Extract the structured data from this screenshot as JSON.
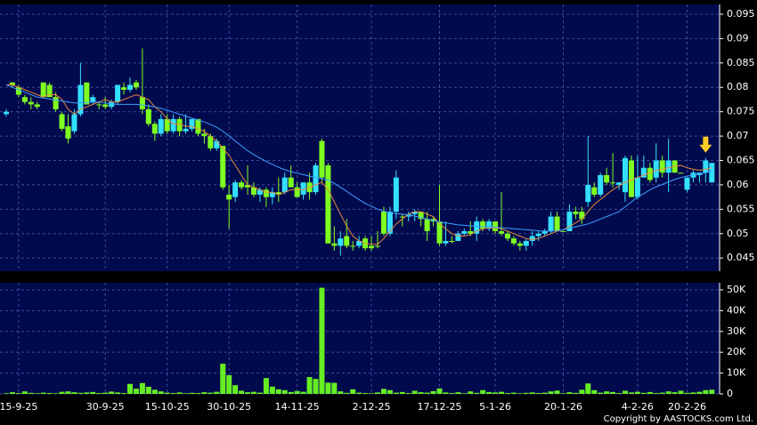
{
  "chart_data": {
    "type": "candlestick",
    "categories": [
      null,
      null,
      "15-9-25",
      null,
      null,
      null,
      null,
      null,
      null,
      null,
      null,
      null,
      null,
      null,
      null,
      null,
      "30-9-25",
      null,
      null,
      null,
      null,
      null,
      null,
      null,
      null,
      null,
      "15-10-25",
      null,
      null,
      null,
      null,
      null,
      null,
      null,
      null,
      null,
      "30-10-25",
      null,
      null,
      null,
      null,
      null,
      null,
      null,
      null,
      null,
      null,
      "14-11-25",
      null,
      null,
      null,
      null,
      null,
      null,
      null,
      null,
      null,
      null,
      null,
      "2-12-25",
      null,
      null,
      null,
      null,
      null,
      null,
      null,
      null,
      null,
      null,
      "17-12-25",
      null,
      null,
      null,
      null,
      null,
      null,
      null,
      null,
      "5-1-26",
      null,
      null,
      null,
      null,
      null,
      null,
      null,
      null,
      null,
      null,
      "20-1-26",
      null,
      null,
      null,
      null,
      null,
      null,
      null,
      null,
      null,
      null,
      null,
      "4-2-26",
      null,
      null,
      null,
      null,
      null,
      null,
      null,
      "20-2-26",
      null,
      null,
      null,
      null
    ],
    "ohlc": [
      [
        0.0745,
        0.0755,
        0.074,
        0.075
      ],
      [
        0.081,
        0.081,
        0.08,
        0.0805
      ],
      [
        0.08,
        0.0805,
        0.078,
        0.0785
      ],
      [
        0.078,
        0.0785,
        0.0765,
        0.077
      ],
      [
        0.077,
        0.078,
        0.0755,
        0.0765
      ],
      [
        0.0765,
        0.077,
        0.0755,
        0.076
      ],
      [
        0.081,
        0.081,
        0.078,
        0.078
      ],
      [
        0.0805,
        0.081,
        0.078,
        0.078
      ],
      [
        0.078,
        0.079,
        0.075,
        0.0755
      ],
      [
        0.0745,
        0.075,
        0.071,
        0.0715
      ],
      [
        0.072,
        0.0745,
        0.0685,
        0.0695
      ],
      [
        0.071,
        0.0755,
        0.0705,
        0.0745
      ],
      [
        0.0745,
        0.085,
        0.074,
        0.0805
      ],
      [
        0.081,
        0.081,
        0.0765,
        0.0765
      ],
      [
        0.077,
        0.0785,
        0.0765,
        0.078
      ],
      [
        0.0765,
        0.077,
        0.0755,
        0.0765
      ],
      [
        0.0765,
        0.078,
        0.0755,
        0.076
      ],
      [
        0.076,
        0.0775,
        0.0755,
        0.077
      ],
      [
        0.077,
        0.0805,
        0.0765,
        0.0805
      ],
      [
        0.08,
        0.081,
        0.0785,
        0.0795
      ],
      [
        0.0795,
        0.082,
        0.079,
        0.0805
      ],
      [
        0.081,
        0.0815,
        0.0795,
        0.08
      ],
      [
        0.078,
        0.088,
        0.0745,
        0.0755
      ],
      [
        0.0755,
        0.0765,
        0.072,
        0.0725
      ],
      [
        0.0725,
        0.073,
        0.069,
        0.0705
      ],
      [
        0.0705,
        0.0745,
        0.07,
        0.0735
      ],
      [
        0.0735,
        0.0745,
        0.0705,
        0.071
      ],
      [
        0.071,
        0.0745,
        0.0705,
        0.0735
      ],
      [
        0.0735,
        0.074,
        0.07,
        0.071
      ],
      [
        0.071,
        0.0745,
        0.0705,
        0.0715
      ],
      [
        0.0715,
        0.0735,
        0.071,
        0.0735
      ],
      [
        0.0735,
        0.0735,
        0.07,
        0.0705
      ],
      [
        0.0705,
        0.0715,
        0.0685,
        0.07
      ],
      [
        0.07,
        0.0705,
        0.067,
        0.0675
      ],
      [
        0.0675,
        0.0695,
        0.067,
        0.069
      ],
      [
        0.068,
        0.068,
        0.059,
        0.0595
      ],
      [
        0.058,
        0.06,
        0.051,
        0.057
      ],
      [
        0.0575,
        0.061,
        0.0565,
        0.0605
      ],
      [
        0.0605,
        0.061,
        0.059,
        0.0595
      ],
      [
        0.06,
        0.064,
        0.058,
        0.0595
      ],
      [
        0.0595,
        0.0605,
        0.0575,
        0.058
      ],
      [
        0.058,
        0.0595,
        0.0565,
        0.059
      ],
      [
        0.059,
        0.0595,
        0.0555,
        0.0575
      ],
      [
        0.0575,
        0.0595,
        0.056,
        0.0585
      ],
      [
        0.0585,
        0.0615,
        0.0565,
        0.058
      ],
      [
        0.0585,
        0.0625,
        0.058,
        0.0615
      ],
      [
        0.0615,
        0.064,
        0.0595,
        0.0595
      ],
      [
        0.0595,
        0.0605,
        0.0575,
        0.0575
      ],
      [
        0.058,
        0.0605,
        0.057,
        0.0605
      ],
      [
        0.0605,
        0.0625,
        0.057,
        0.0585
      ],
      [
        0.0585,
        0.0645,
        0.058,
        0.064
      ],
      [
        0.069,
        0.0695,
        0.0605,
        0.0615
      ],
      [
        0.064,
        0.0645,
        0.048,
        0.048
      ],
      [
        0.048,
        0.0515,
        0.0465,
        0.0475
      ],
      [
        0.0475,
        0.0505,
        0.0455,
        0.049
      ],
      [
        0.0495,
        0.053,
        0.047,
        0.0475
      ],
      [
        0.0475,
        0.0485,
        0.0465,
        0.0475
      ],
      [
        0.0475,
        0.0495,
        0.047,
        0.0485
      ],
      [
        0.049,
        0.0495,
        0.0465,
        0.047
      ],
      [
        0.0475,
        0.0495,
        0.0465,
        0.047
      ],
      [
        0.0475,
        0.0505,
        0.047,
        0.0475
      ],
      [
        0.0545,
        0.0555,
        0.0495,
        0.05
      ],
      [
        0.05,
        0.0555,
        0.0495,
        0.0545
      ],
      [
        0.0545,
        0.063,
        0.053,
        0.0615
      ],
      [
        0.0535,
        0.054,
        0.0515,
        0.0535
      ],
      [
        0.0535,
        0.0545,
        0.0525,
        0.054
      ],
      [
        0.054,
        0.055,
        0.0525,
        0.0545
      ],
      [
        0.0545,
        0.0545,
        0.0515,
        0.053
      ],
      [
        0.053,
        0.0545,
        0.0485,
        0.0505
      ],
      [
        0.053,
        0.0535,
        0.0515,
        0.0525
      ],
      [
        0.0525,
        0.06,
        0.0475,
        0.048
      ],
      [
        0.048,
        0.0525,
        0.0475,
        0.0485
      ],
      [
        0.0485,
        0.0495,
        0.048,
        0.0485
      ],
      [
        0.0485,
        0.0505,
        0.0485,
        0.05
      ],
      [
        0.05,
        0.051,
        0.0495,
        0.0505
      ],
      [
        0.0505,
        0.0525,
        0.0495,
        0.05
      ],
      [
        0.05,
        0.0535,
        0.0485,
        0.0525
      ],
      [
        0.0525,
        0.053,
        0.0505,
        0.051
      ],
      [
        0.051,
        0.053,
        0.0505,
        0.0525
      ],
      [
        0.0525,
        0.0525,
        0.05,
        0.0505
      ],
      [
        0.0505,
        0.0585,
        0.0495,
        0.05
      ],
      [
        0.05,
        0.0505,
        0.0485,
        0.049
      ],
      [
        0.049,
        0.0495,
        0.0475,
        0.048
      ],
      [
        0.048,
        0.0485,
        0.0465,
        0.0475
      ],
      [
        0.0475,
        0.049,
        0.0465,
        0.0485
      ],
      [
        0.0485,
        0.0505,
        0.0475,
        0.0495
      ],
      [
        0.0495,
        0.0505,
        0.0485,
        0.05
      ],
      [
        0.05,
        0.051,
        0.0495,
        0.0505
      ],
      [
        0.0505,
        0.0545,
        0.05,
        0.0535
      ],
      [
        0.0535,
        0.0545,
        0.0505,
        0.0505
      ],
      [
        0.0505,
        0.0505,
        0.0505,
        0.0505
      ],
      [
        0.0505,
        0.056,
        0.0505,
        0.0545
      ],
      [
        0.0545,
        0.0555,
        0.053,
        0.054
      ],
      [
        0.0545,
        0.0555,
        0.052,
        0.053
      ],
      [
        0.0565,
        0.07,
        0.0555,
        0.06
      ],
      [
        0.0595,
        0.0605,
        0.0575,
        0.058
      ],
      [
        0.058,
        0.0625,
        0.0575,
        0.062
      ],
      [
        0.062,
        0.0635,
        0.06,
        0.0605
      ],
      [
        0.0605,
        0.0665,
        0.0595,
        0.0605
      ],
      [
        0.06,
        0.0605,
        0.059,
        0.0605
      ],
      [
        0.0585,
        0.066,
        0.0565,
        0.0655
      ],
      [
        0.065,
        0.066,
        0.0575,
        0.0575
      ],
      [
        0.0575,
        0.066,
        0.057,
        0.0615
      ],
      [
        0.0615,
        0.066,
        0.0615,
        0.0635
      ],
      [
        0.0635,
        0.0645,
        0.0605,
        0.061
      ],
      [
        0.0615,
        0.0685,
        0.0605,
        0.065
      ],
      [
        0.065,
        0.066,
        0.0615,
        0.0625
      ],
      [
        0.0625,
        0.0695,
        0.0585,
        0.065
      ],
      [
        0.065,
        0.065,
        0.0625,
        0.0625
      ],
      [
        0.0625,
        0.0625,
        0.0625,
        0.0625
      ],
      [
        0.059,
        0.0615,
        0.0585,
        0.0615
      ],
      [
        0.0615,
        0.063,
        0.0605,
        0.0625
      ],
      [
        0.062,
        0.0625,
        0.0605,
        0.0625
      ],
      [
        0.0625,
        0.0655,
        0.0605,
        0.065
      ],
      [
        0.0605,
        0.0645,
        0.0605,
        0.0645
      ]
    ],
    "up_color": "#33e0ff",
    "down_color": "#7fff1f",
    "ma": [
      {
        "color": "#e8893a",
        "values": [
          0.0805,
          0.0805,
          0.08,
          0.0795,
          0.079,
          0.0785,
          0.078,
          0.0785,
          0.0785,
          0.0775,
          0.0755,
          0.0745,
          0.0755,
          0.076,
          0.0765,
          0.077,
          0.0775,
          0.077,
          0.077,
          0.0775,
          0.078,
          0.0785,
          0.078,
          0.0775,
          0.076,
          0.075,
          0.0735,
          0.0725,
          0.0725,
          0.072,
          0.072,
          0.0715,
          0.071,
          0.07,
          0.069,
          0.0675,
          0.066,
          0.064,
          0.062,
          0.06,
          0.0595,
          0.059,
          0.0585,
          0.0585,
          0.058,
          0.0585,
          0.059,
          0.059,
          0.059,
          0.0595,
          0.06,
          0.0605,
          0.059,
          0.0565,
          0.054,
          0.0515,
          0.0495,
          0.0485,
          0.048,
          0.0478,
          0.0478,
          0.049,
          0.0505,
          0.052,
          0.053,
          0.054,
          0.0545,
          0.0545,
          0.054,
          0.0535,
          0.052,
          0.051,
          0.05,
          0.0495,
          0.0495,
          0.0498,
          0.0505,
          0.051,
          0.0512,
          0.0512,
          0.051,
          0.0505,
          0.05,
          0.0495,
          0.049,
          0.0488,
          0.049,
          0.0495,
          0.05,
          0.0505,
          0.0508,
          0.0515,
          0.0522,
          0.053,
          0.0545,
          0.056,
          0.057,
          0.058,
          0.059,
          0.0598,
          0.0605,
          0.061,
          0.0615,
          0.062,
          0.0625,
          0.063,
          0.0632,
          0.0635,
          0.0638,
          0.064,
          0.0635,
          0.0632,
          0.063,
          0.0632,
          0.0635
        ]
      },
      {
        "color": "#3aa0ff",
        "values": [
          0.0805,
          0.08,
          0.0795,
          0.079,
          0.0785,
          0.078,
          0.0778,
          0.0776,
          0.0774,
          0.0772,
          0.077,
          0.0768,
          0.0768,
          0.0769,
          0.077,
          0.077,
          0.0768,
          0.0766,
          0.0765,
          0.0765,
          0.0765,
          0.0765,
          0.0764,
          0.0762,
          0.076,
          0.0757,
          0.0753,
          0.0749,
          0.0745,
          0.0741,
          0.0737,
          0.0733,
          0.0729,
          0.0724,
          0.0718,
          0.071,
          0.07,
          0.069,
          0.068,
          0.067,
          0.0662,
          0.0655,
          0.0648,
          0.0642,
          0.0636,
          0.0631,
          0.0627,
          0.0624,
          0.0621,
          0.0618,
          0.0615,
          0.0613,
          0.061,
          0.0603,
          0.0595,
          0.0587,
          0.0578,
          0.057,
          0.0562,
          0.0556,
          0.055,
          0.0546,
          0.0543,
          0.0541,
          0.054,
          0.0538,
          0.0536,
          0.0533,
          0.053,
          0.0527,
          0.0524,
          0.0522,
          0.052,
          0.0518,
          0.0517,
          0.0516,
          0.0515,
          0.0514,
          0.0514,
          0.0513,
          0.0512,
          0.0511,
          0.051,
          0.0509,
          0.0508,
          0.0507,
          0.0506,
          0.0505,
          0.0505,
          0.0506,
          0.0508,
          0.0511,
          0.0514,
          0.0517,
          0.052,
          0.0525,
          0.053,
          0.0535,
          0.054,
          0.0545,
          0.0555,
          0.0565,
          0.0575,
          0.0582,
          0.059,
          0.0596,
          0.0601,
          0.0606,
          0.0611,
          0.0615,
          0.0618,
          0.062,
          0.0622,
          0.0625,
          0.0628
        ]
      }
    ],
    "ylim": [
      0.0423,
      0.097
    ],
    "yticks": [
      0.045,
      0.05,
      0.055,
      0.06,
      0.065,
      0.07,
      0.075,
      0.08,
      0.085,
      0.09,
      0.095
    ],
    "volume": [
      300,
      800,
      400,
      1200,
      500,
      300,
      600,
      400,
      300,
      1000,
      1200,
      800,
      500,
      700,
      900,
      400,
      600,
      1100,
      700,
      400,
      4800,
      2500,
      5200,
      3400,
      2000,
      1200,
      600,
      400,
      700,
      300,
      500,
      400,
      800,
      600,
      1000,
      14500,
      9000,
      4200,
      1500,
      800,
      1000,
      600,
      7600,
      3500,
      2200,
      1800,
      900,
      1400,
      1000,
      8100,
      7200,
      51000,
      5400,
      5300,
      1200,
      500,
      2200,
      600,
      400,
      300,
      700,
      2400,
      1800,
      600,
      900,
      400,
      1500,
      800,
      600,
      1300,
      2600,
      700,
      400,
      800,
      300,
      1200,
      500,
      1800,
      900,
      700,
      1000,
      400,
      600,
      300,
      500,
      700,
      400,
      600,
      1200,
      1600,
      300,
      800,
      500,
      2000,
      5000,
      1800,
      600,
      1200,
      900,
      400,
      1500,
      700,
      1000,
      500,
      900,
      400,
      600,
      1200,
      800,
      1500,
      500,
      700,
      1000,
      1800,
      2000
    ],
    "volume_color": "#66ee22",
    "vlim": [
      0,
      53400
    ],
    "vticks": [
      0,
      {
        "value": 10000,
        "label": "10K"
      },
      {
        "value": 20000,
        "label": "20K"
      },
      {
        "value": 30000,
        "label": "30K"
      },
      {
        "value": 40000,
        "label": "40K"
      },
      {
        "value": 50000,
        "label": "50K"
      }
    ],
    "grid": true,
    "copyright": "Copyright by AASTOCKS.com Ltd."
  }
}
